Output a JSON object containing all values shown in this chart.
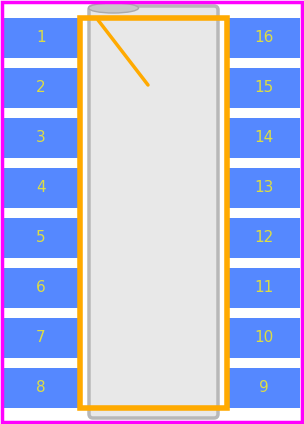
{
  "bg_color": "#ffffff",
  "border_color": "#ff00ff",
  "pad_color": "#5588ff",
  "pad_text_color": "#dddd44",
  "body_fill": "#e8e8e8",
  "body_stroke": "#b8b8b8",
  "outline_color": "#ffaa00",
  "pin1_marker_color": "#ffaa00",
  "notch_color": "#c8c8c8",
  "n_pins_per_side": 8,
  "left_pins": [
    1,
    2,
    3,
    4,
    5,
    6,
    7,
    8
  ],
  "right_pins": [
    16,
    15,
    14,
    13,
    12,
    11,
    10,
    9
  ],
  "fig_width": 3.04,
  "fig_height": 4.24,
  "dpi": 100
}
